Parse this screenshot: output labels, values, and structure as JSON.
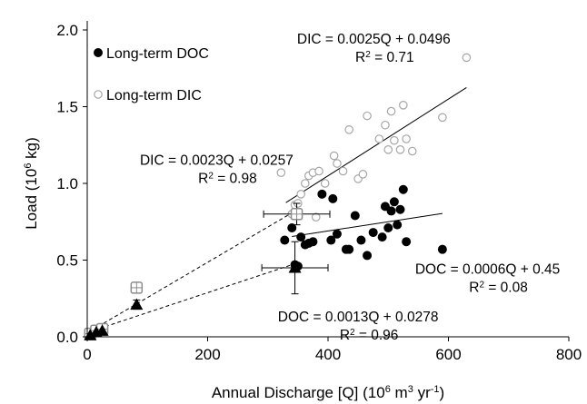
{
  "chart_data": {
    "type": "scatter",
    "xlabel": "Annual Discharge [Q] (10⁶ m³ yr⁻¹)",
    "ylabel": "Load (10⁶ kg)",
    "xlim": [
      0,
      800
    ],
    "ylim": [
      0,
      2.0
    ],
    "xticks": [
      0,
      200,
      400,
      600,
      800
    ],
    "yticks": [
      0.0,
      0.5,
      1.0,
      1.5,
      2.0
    ],
    "x_tick_labels": [
      "0",
      "200",
      "400",
      "600",
      "800"
    ],
    "y_tick_labels": [
      "0.0",
      "0.5",
      "1.0",
      "1.5",
      "2.0"
    ],
    "grid": false,
    "legend_position": "top-left",
    "legend": [
      {
        "label": "Long-term DOC",
        "marker": "filled-circle"
      },
      {
        "label": "Long-term DIC",
        "marker": "open-circle"
      }
    ],
    "series": [
      {
        "name": "Long-term DOC",
        "marker": "filled-circle",
        "color": "#000000",
        "points": [
          [
            328,
            0.63
          ],
          [
            340,
            0.71
          ],
          [
            345,
            0.47
          ],
          [
            350,
            0.46
          ],
          [
            355,
            0.65
          ],
          [
            362,
            0.6
          ],
          [
            368,
            0.61
          ],
          [
            375,
            0.62
          ],
          [
            390,
            0.93
          ],
          [
            405,
            0.63
          ],
          [
            408,
            0.9
          ],
          [
            415,
            0.67
          ],
          [
            430,
            0.57
          ],
          [
            435,
            0.57
          ],
          [
            445,
            0.79
          ],
          [
            455,
            0.63
          ],
          [
            465,
            0.53
          ],
          [
            475,
            0.68
          ],
          [
            490,
            0.65
          ],
          [
            495,
            0.85
          ],
          [
            500,
            0.71
          ],
          [
            505,
            0.82
          ],
          [
            510,
            0.88
          ],
          [
            515,
            0.73
          ],
          [
            520,
            0.83
          ],
          [
            525,
            0.96
          ],
          [
            530,
            0.62
          ],
          [
            590,
            0.57
          ]
        ]
      },
      {
        "name": "Long-term DIC",
        "marker": "open-circle",
        "color": "#a6a6a6",
        "points": [
          [
            322,
            1.07
          ],
          [
            340,
            0.8
          ],
          [
            345,
            0.86
          ],
          [
            350,
            0.87
          ],
          [
            355,
            0.93
          ],
          [
            362,
            1.0
          ],
          [
            368,
            1.05
          ],
          [
            375,
            1.07
          ],
          [
            380,
            0.78
          ],
          [
            385,
            1.08
          ],
          [
            395,
            1.0
          ],
          [
            410,
            1.18
          ],
          [
            415,
            1.13
          ],
          [
            425,
            1.08
          ],
          [
            435,
            1.35
          ],
          [
            450,
            1.03
          ],
          [
            458,
            1.06
          ],
          [
            465,
            1.44
          ],
          [
            485,
            1.29
          ],
          [
            495,
            1.38
          ],
          [
            500,
            1.22
          ],
          [
            505,
            1.47
          ],
          [
            510,
            1.28
          ],
          [
            520,
            1.22
          ],
          [
            525,
            1.51
          ],
          [
            530,
            1.29
          ],
          [
            540,
            1.21
          ],
          [
            590,
            1.43
          ],
          [
            630,
            1.82
          ]
        ]
      },
      {
        "name": "DIC mean (open square)",
        "marker": "open-square-crosshair",
        "color": "#8c8c8c",
        "points": [
          [
            5,
            0.02
          ],
          [
            15,
            0.04
          ],
          [
            25,
            0.05
          ],
          [
            82,
            0.32
          ],
          [
            348,
            0.8
          ]
        ],
        "x_error": [
          0,
          0,
          0,
          0,
          55
        ],
        "y_error": [
          0,
          0,
          0,
          0.03,
          0.07
        ]
      },
      {
        "name": "DOC mean (triangle)",
        "marker": "filled-triangle",
        "color": "#000000",
        "points": [
          [
            5,
            0.01
          ],
          [
            15,
            0.03
          ],
          [
            25,
            0.04
          ],
          [
            82,
            0.21
          ],
          [
            345,
            0.45
          ]
        ],
        "x_error": [
          0,
          0,
          0,
          0,
          55
        ],
        "y_error": [
          0,
          0,
          0,
          0.03,
          0.17
        ]
      }
    ],
    "trendlines": [
      {
        "name": "DIC long-term fit",
        "style": "solid",
        "slope": 0.0025,
        "intercept": 0.0496,
        "x_range": [
          330,
          630
        ]
      },
      {
        "name": "DOC long-term fit",
        "style": "solid",
        "slope": 0.0006,
        "intercept": 0.45,
        "x_range": [
          340,
          590
        ]
      },
      {
        "name": "DIC mean fit",
        "style": "dashed",
        "slope": 0.0023,
        "intercept": 0.0257,
        "x_range": [
          0,
          350
        ]
      },
      {
        "name": "DOC mean fit",
        "style": "dashed",
        "slope": 0.0013,
        "intercept": 0.0278,
        "x_range": [
          0,
          345
        ]
      }
    ],
    "annotations": [
      {
        "lines": [
          "DIC = 0.0025Q + 0.0496",
          "R² = 0.71"
        ],
        "at": [
          476,
          1.91
        ]
      },
      {
        "lines": [
          "DIC = 0.0023Q + 0.0257",
          "R² = 0.98"
        ],
        "at": [
          215,
          1.12
        ]
      },
      {
        "lines": [
          "DOC = 0.0006Q + 0.45",
          "R² = 0.08"
        ],
        "at": [
          665,
          0.41
        ]
      },
      {
        "lines": [
          "DOC = 0.0013Q + 0.0278",
          "R² = 0.96"
        ],
        "at": [
          450,
          0.1
        ]
      }
    ]
  }
}
